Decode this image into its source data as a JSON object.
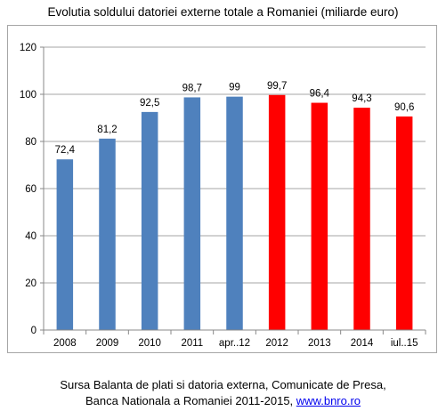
{
  "title": "Evolutia soldului datoriei externe totale a Romaniei (miliarde euro)",
  "source": {
    "line1": "Sursa Balanta de plati si datoria externa, Comunicate de Presa,",
    "line2": "Banca Nationala a Romaniei 2011-2015, ",
    "link": "www.bnro.ro"
  },
  "chart_data": {
    "type": "bar",
    "categories": [
      "2008",
      "2009",
      "2010",
      "2011",
      "apr..12",
      "2012",
      "2013",
      "2014",
      "iul..15"
    ],
    "values": [
      72.4,
      81.2,
      92.5,
      98.7,
      99,
      99.7,
      96.4,
      94.3,
      90.6
    ],
    "data_labels": [
      "72,4",
      "81,2",
      "92,5",
      "98,7",
      "99",
      "99,7",
      "96,4",
      "94,3",
      "90,6"
    ],
    "ylim": [
      0,
      120
    ],
    "yticks": [
      "0",
      "20",
      "40",
      "60",
      "80",
      "100",
      "120"
    ],
    "grid": true,
    "colors": [
      "#4f81bd",
      "#4f81bd",
      "#4f81bd",
      "#4f81bd",
      "#4f81bd",
      "#ff0000",
      "#ff0000",
      "#ff0000",
      "#ff0000"
    ],
    "xlabel": "",
    "ylabel": ""
  }
}
